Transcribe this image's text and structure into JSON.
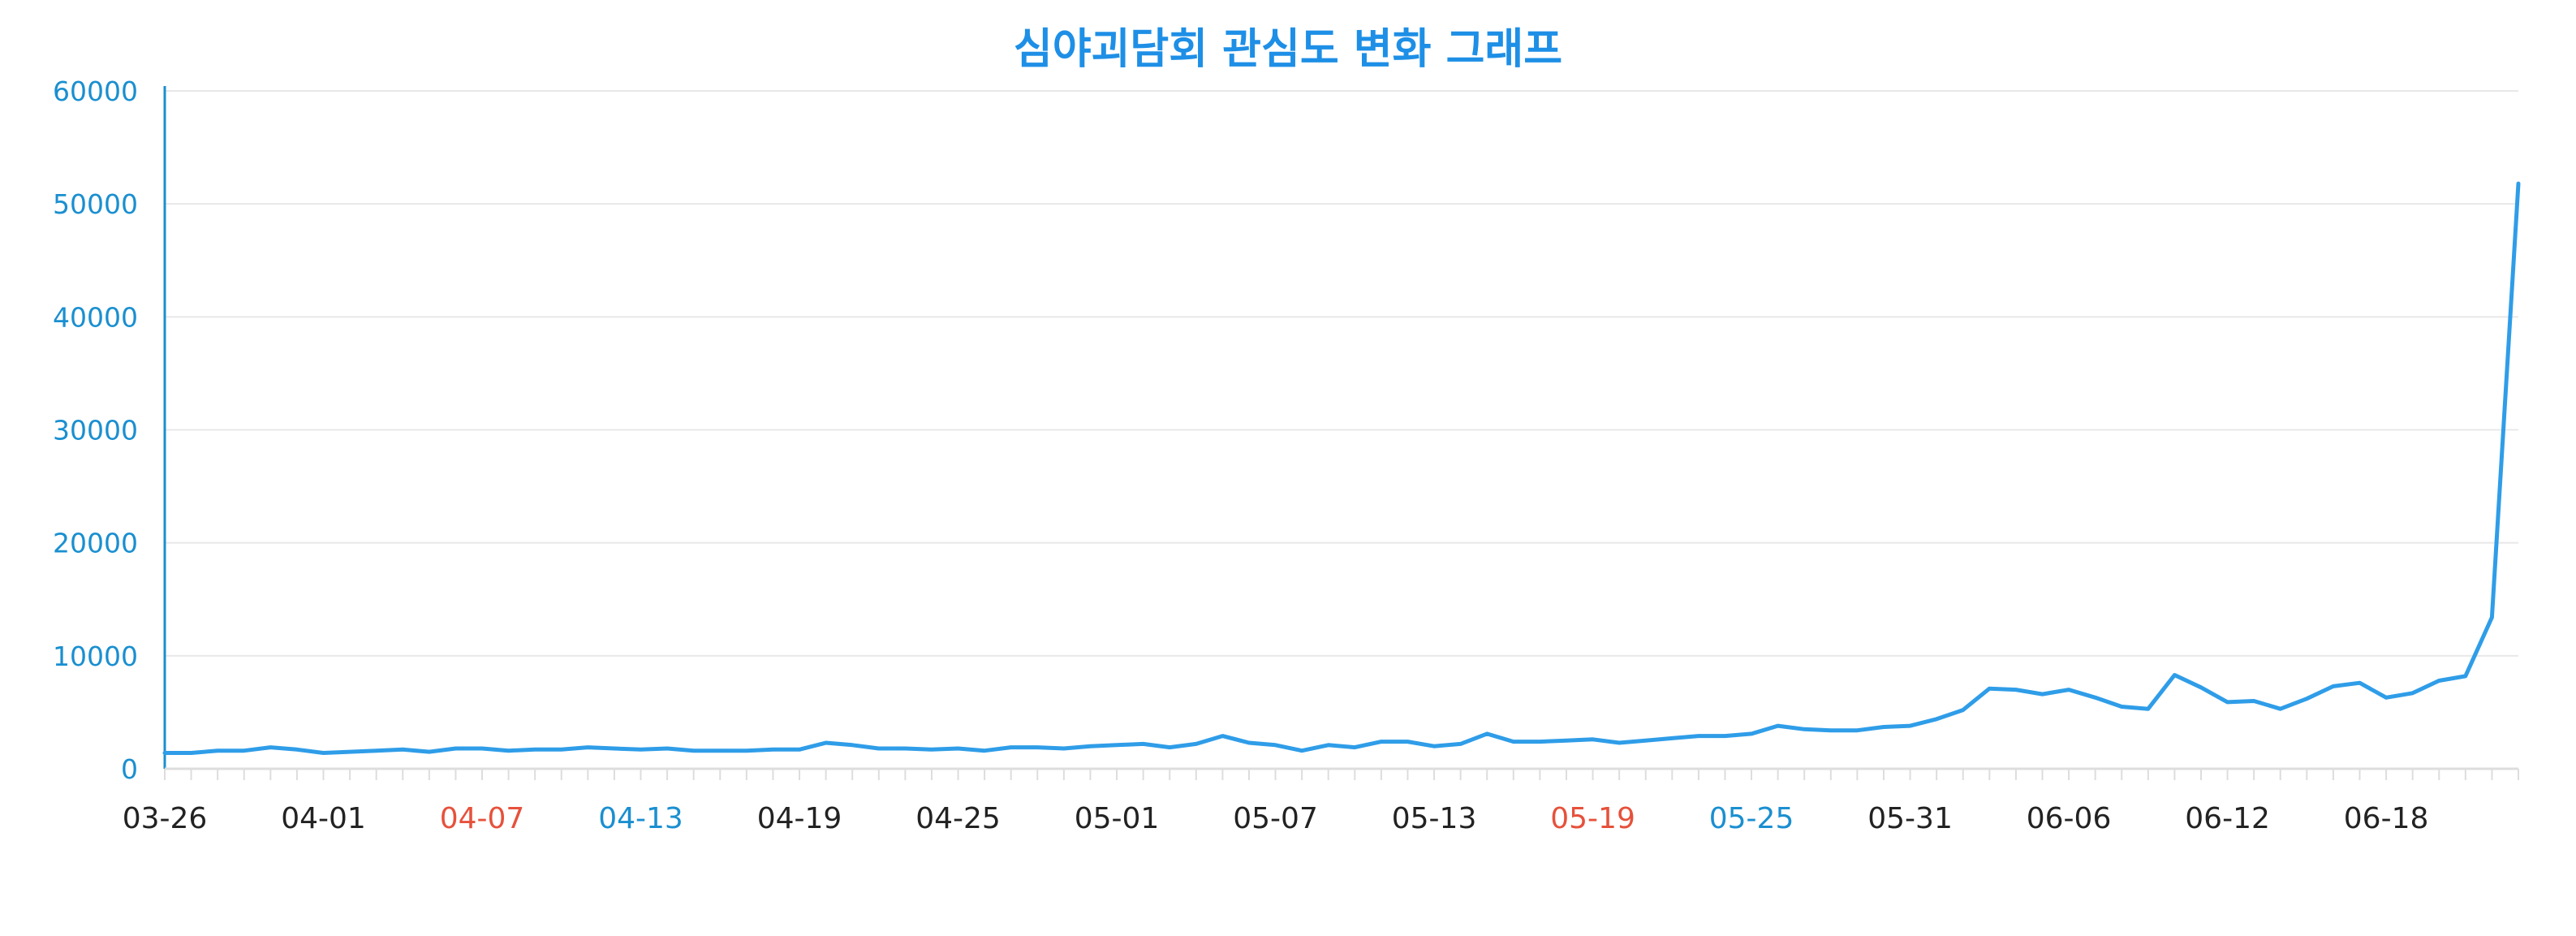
{
  "colors": {
    "accent": "#2f9de8",
    "title": "#1e8fe6",
    "axis_text": "#1a8fd0",
    "grid": "#e8e8e8",
    "tick_default": "#222222",
    "tick_weekend_red": "#e6513b",
    "tick_weekend_blue": "#1a8fd0"
  },
  "chart_data": {
    "type": "line",
    "title": "심야괴담회 관심도 변화 그래프",
    "xlabel": "",
    "ylabel": "",
    "ylim": [
      0,
      60000
    ],
    "yticks": [
      "60000",
      "50000",
      "40000",
      "30000",
      "20000",
      "10000",
      "0"
    ],
    "grid": true,
    "legend": "none",
    "x_start": "03-26",
    "x_end": "06-23",
    "xticks": [
      {
        "label": "03-26",
        "color": "default"
      },
      {
        "label": "04-01",
        "color": "default"
      },
      {
        "label": "04-07",
        "color": "red"
      },
      {
        "label": "04-13",
        "color": "blue"
      },
      {
        "label": "04-19",
        "color": "default"
      },
      {
        "label": "04-25",
        "color": "default"
      },
      {
        "label": "05-01",
        "color": "default"
      },
      {
        "label": "05-07",
        "color": "default"
      },
      {
        "label": "05-13",
        "color": "default"
      },
      {
        "label": "05-19",
        "color": "red"
      },
      {
        "label": "05-25",
        "color": "blue"
      },
      {
        "label": "05-31",
        "color": "default"
      },
      {
        "label": "06-06",
        "color": "default"
      },
      {
        "label": "06-12",
        "color": "default"
      },
      {
        "label": "06-18",
        "color": "default"
      }
    ],
    "series": [
      {
        "values": [
          1400,
          1400,
          1600,
          1600,
          1900,
          1700,
          1400,
          1500,
          1600,
          1700,
          1500,
          1800,
          1800,
          1600,
          1700,
          1700,
          1900,
          1800,
          1700,
          1800,
          1600,
          1600,
          1600,
          1700,
          1700,
          2300,
          2100,
          1800,
          1800,
          1700,
          1800,
          1600,
          1900,
          1900,
          1800,
          2000,
          2100,
          2200,
          1900,
          2200,
          2900,
          2300,
          2100,
          1600,
          2100,
          1900,
          2400,
          2400,
          2000,
          2200,
          3100,
          2400,
          2400,
          2500,
          2600,
          2300,
          2500,
          2700,
          2900,
          2900,
          3100,
          3800,
          3500,
          3400,
          3400,
          3700,
          3800,
          4400,
          5200,
          7100,
          7000,
          6600,
          7000,
          6300,
          5500,
          5300,
          8300,
          7200,
          5900,
          6000,
          5300,
          6200,
          7300,
          7600,
          6300,
          6700,
          7800,
          8200,
          13400,
          51800
        ]
      }
    ]
  }
}
